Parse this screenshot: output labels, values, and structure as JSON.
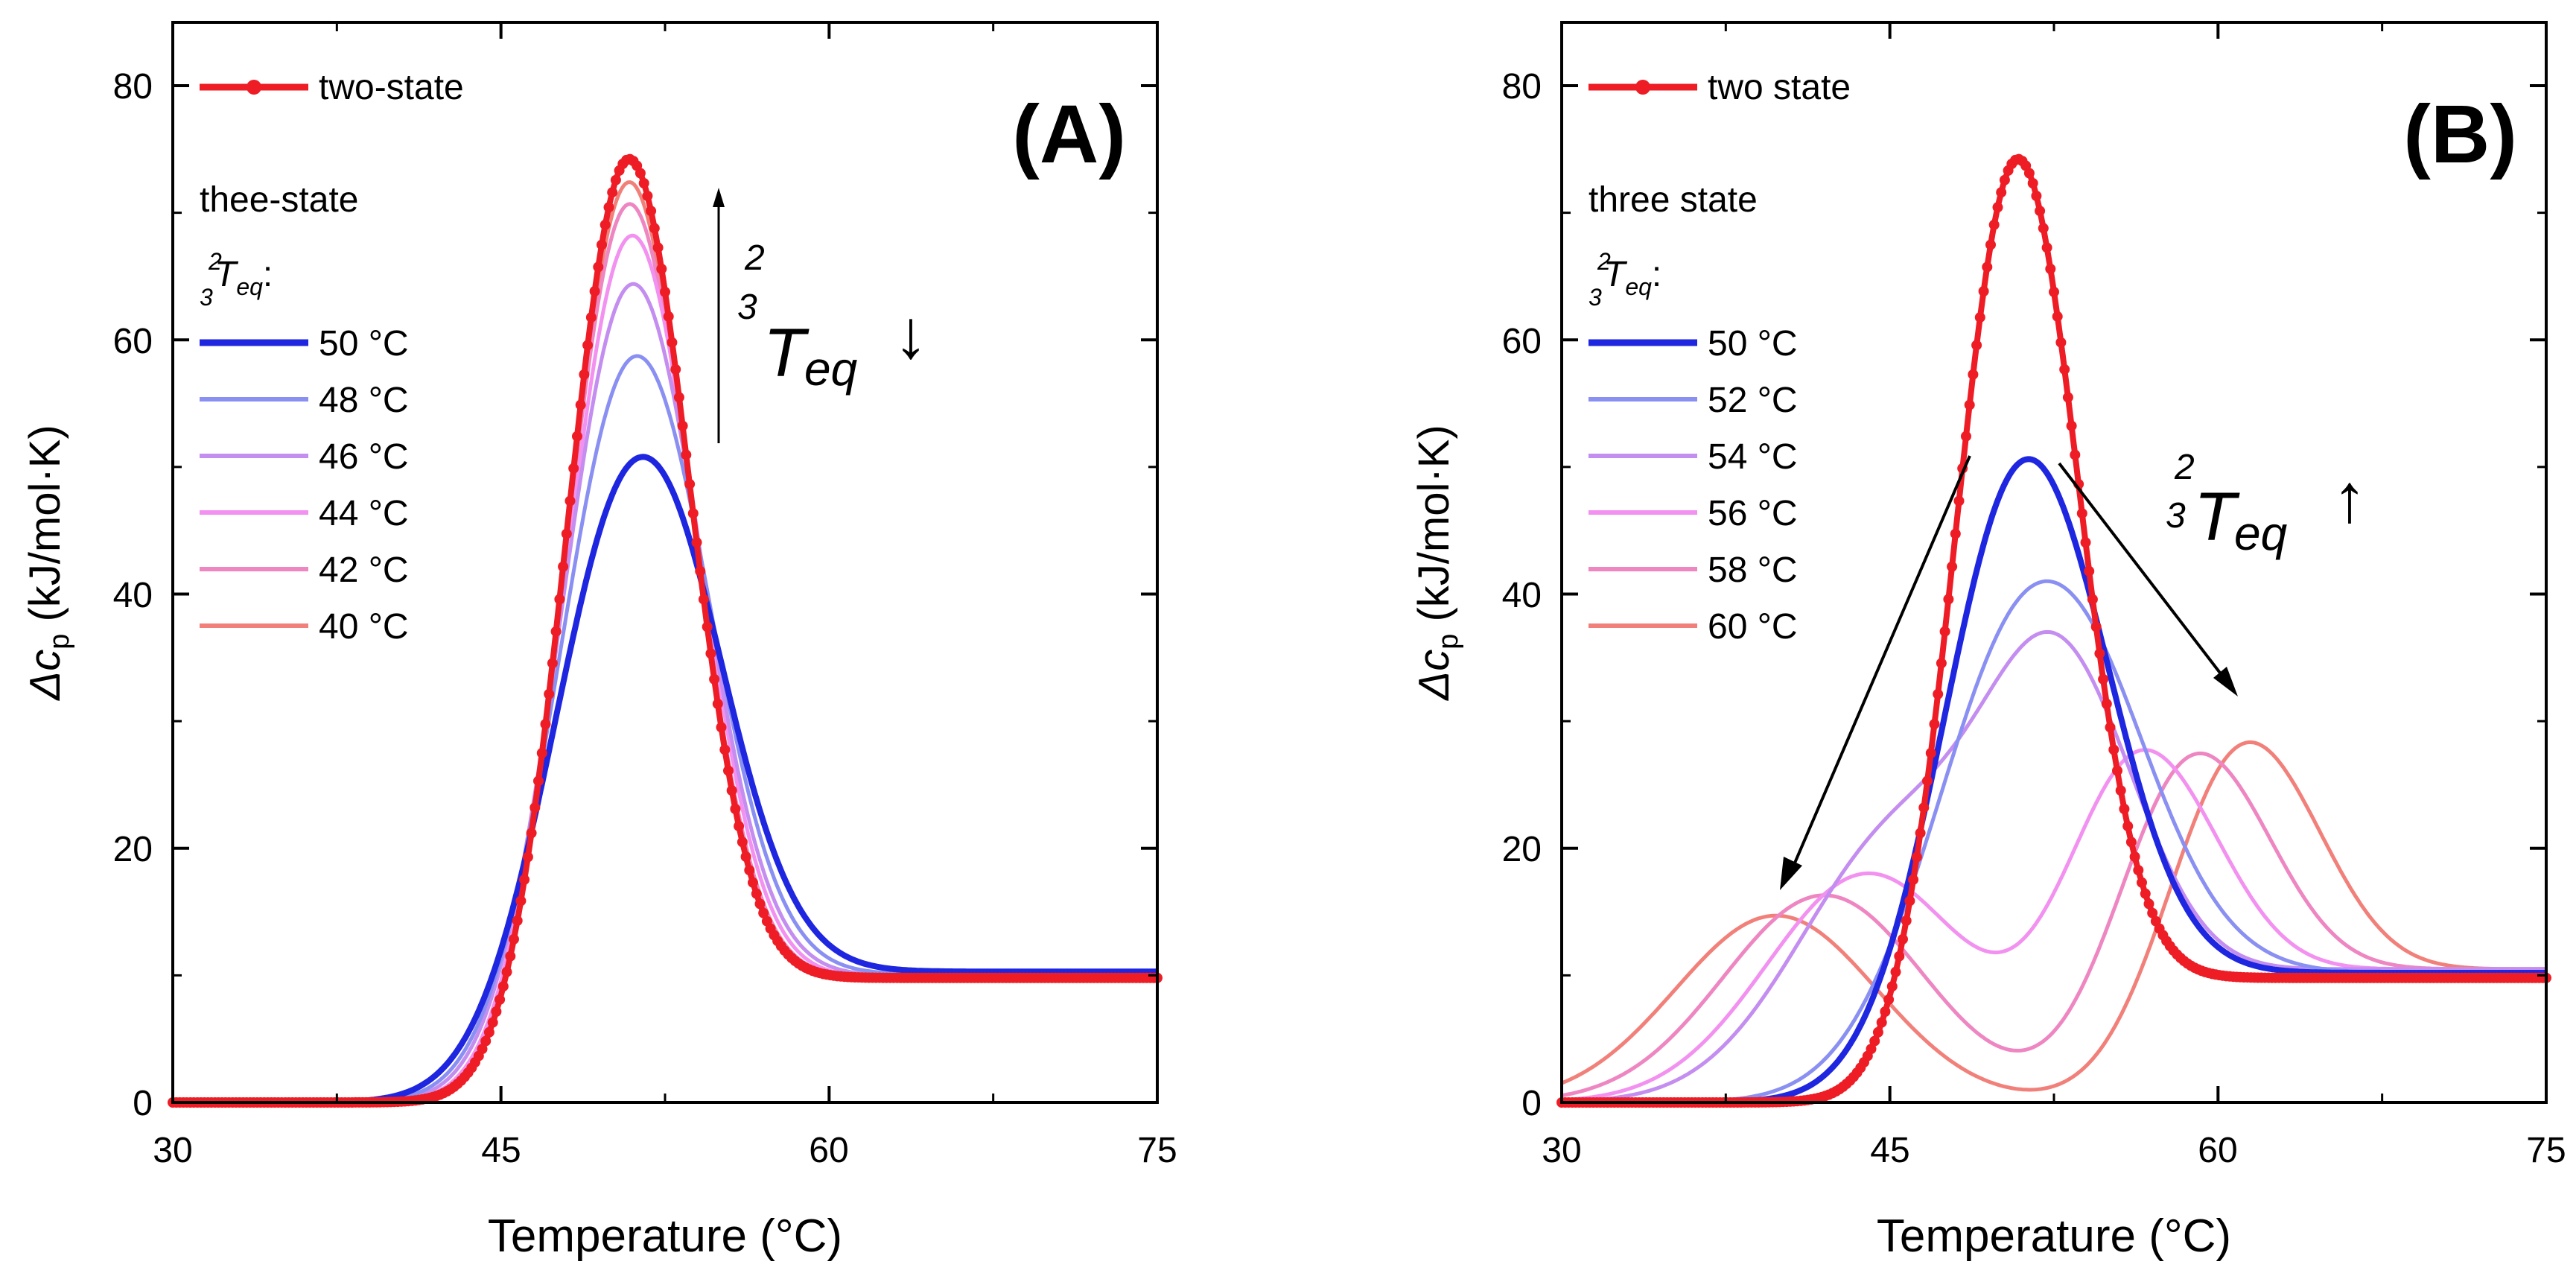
{
  "chart_data": [
    {
      "panel": "(A)",
      "type": "line",
      "title": "",
      "xlabel": "Temperature (°C)",
      "ylabel_prefix": "Δc",
      "ylabel_sub": "p",
      "ylabel_suffix": " (kJ/mol·K)",
      "xlim": [
        30,
        75
      ],
      "ylim": [
        0,
        85
      ],
      "xticks": [
        30,
        45,
        60,
        75
      ],
      "yticks": [
        0,
        20,
        40,
        60,
        80
      ],
      "grid": false,
      "legend_position": "top-left",
      "legend_heading": "thee-state",
      "legend_sub_super": "2",
      "legend_sub_sub": "3",
      "legend_sub_T": "T",
      "legend_sub_eq": "eq",
      "legend_sub_colon": ":",
      "annotation": {
        "super": "2",
        "sub": "3",
        "T": "T",
        "eq": "eq",
        "arrow": "↓"
      },
      "two_state": {
        "name": "two-state",
        "color": "#ee1c25",
        "peak": {
          "x": 50.7,
          "y": 77.5
        },
        "width": 2.75,
        "baseline_low": 0,
        "baseline_high": 9.8
      },
      "series": [
        {
          "name": "50 °C",
          "color": "#1f26e0",
          "peak": {
            "x": 51.0,
            "y": 53.8
          },
          "width": 3.6,
          "baseline_high": 10.3,
          "tail": 0.7
        },
        {
          "name": "48 °C",
          "color": "#8a8ff2",
          "peak": {
            "x": 50.9,
            "y": 61.8
          },
          "width": 3.3,
          "baseline_high": 10.1,
          "tail": 0.4
        },
        {
          "name": "46 °C",
          "color": "#c48df0",
          "peak": {
            "x": 50.8,
            "y": 67.5
          },
          "width": 3.1,
          "baseline_high": 10.0,
          "tail": 0.25
        },
        {
          "name": "44 °C",
          "color": "#f291f0",
          "peak": {
            "x": 50.8,
            "y": 71.3
          },
          "width": 2.95,
          "baseline_high": 9.9,
          "tail": 0.15
        },
        {
          "name": "42 °C",
          "color": "#ee86c2",
          "peak": {
            "x": 50.7,
            "y": 73.8
          },
          "width": 2.85,
          "baseline_high": 9.9,
          "tail": 0.1
        },
        {
          "name": "40 °C",
          "color": "#f2807a",
          "peak": {
            "x": 50.7,
            "y": 75.5
          },
          "width": 2.8,
          "baseline_high": 9.8,
          "tail": 0.05
        }
      ]
    },
    {
      "panel": "(B)",
      "type": "line",
      "title": "",
      "xlabel": "Temperature (°C)",
      "ylabel_prefix": "Δc",
      "ylabel_sub": "p",
      "ylabel_suffix": " (kJ/mol·K)",
      "xlim": [
        30,
        75
      ],
      "ylim": [
        0,
        85
      ],
      "xticks": [
        30,
        45,
        60,
        75
      ],
      "yticks": [
        0,
        20,
        40,
        60,
        80
      ],
      "grid": false,
      "legend_position": "top-left",
      "legend_heading": "three state",
      "legend_sub_super": "2",
      "legend_sub_sub": "3",
      "legend_sub_T": "T",
      "legend_sub_eq": "eq",
      "legend_sub_colon": ":",
      "annotation": {
        "super": "2",
        "sub": "3",
        "T": "T",
        "eq": "eq",
        "arrow": "↑"
      },
      "two_state": {
        "name": "two state",
        "color": "#ee1c25",
        "peak": {
          "x": 50.7,
          "y": 77.5
        },
        "width": 2.75,
        "baseline_low": 0,
        "baseline_high": 9.8
      },
      "series": [
        {
          "name": "50 °C",
          "color": "#1f26e0",
          "peak": {
            "x": 51.0,
            "y": 53.8
          },
          "second_peak": null
        },
        {
          "name": "52 °C",
          "color": "#8a8ff2",
          "peak": {
            "x": 51.5,
            "y": 44.0
          },
          "second_peak": null
        },
        {
          "name": "54 °C",
          "color": "#c48df0",
          "peak": {
            "x": 52.8,
            "y": 34.9
          },
          "second_peak": {
            "x": 45.5,
            "y": 21.0
          }
        },
        {
          "name": "56 °C",
          "color": "#f291f0",
          "peak": {
            "x": 56.3,
            "y": 31.3
          },
          "second_peak": {
            "x": 44.0,
            "y": 18.0
          }
        },
        {
          "name": "58 °C",
          "color": "#ee86c2",
          "peak": {
            "x": 58.7,
            "y": 31.4
          },
          "second_peak": {
            "x": 42.0,
            "y": 16.3
          }
        },
        {
          "name": "60 °C",
          "color": "#f2807a",
          "peak": {
            "x": 61.0,
            "y": 32.3
          },
          "second_peak": {
            "x": 39.8,
            "y": 14.7
          }
        }
      ]
    }
  ]
}
